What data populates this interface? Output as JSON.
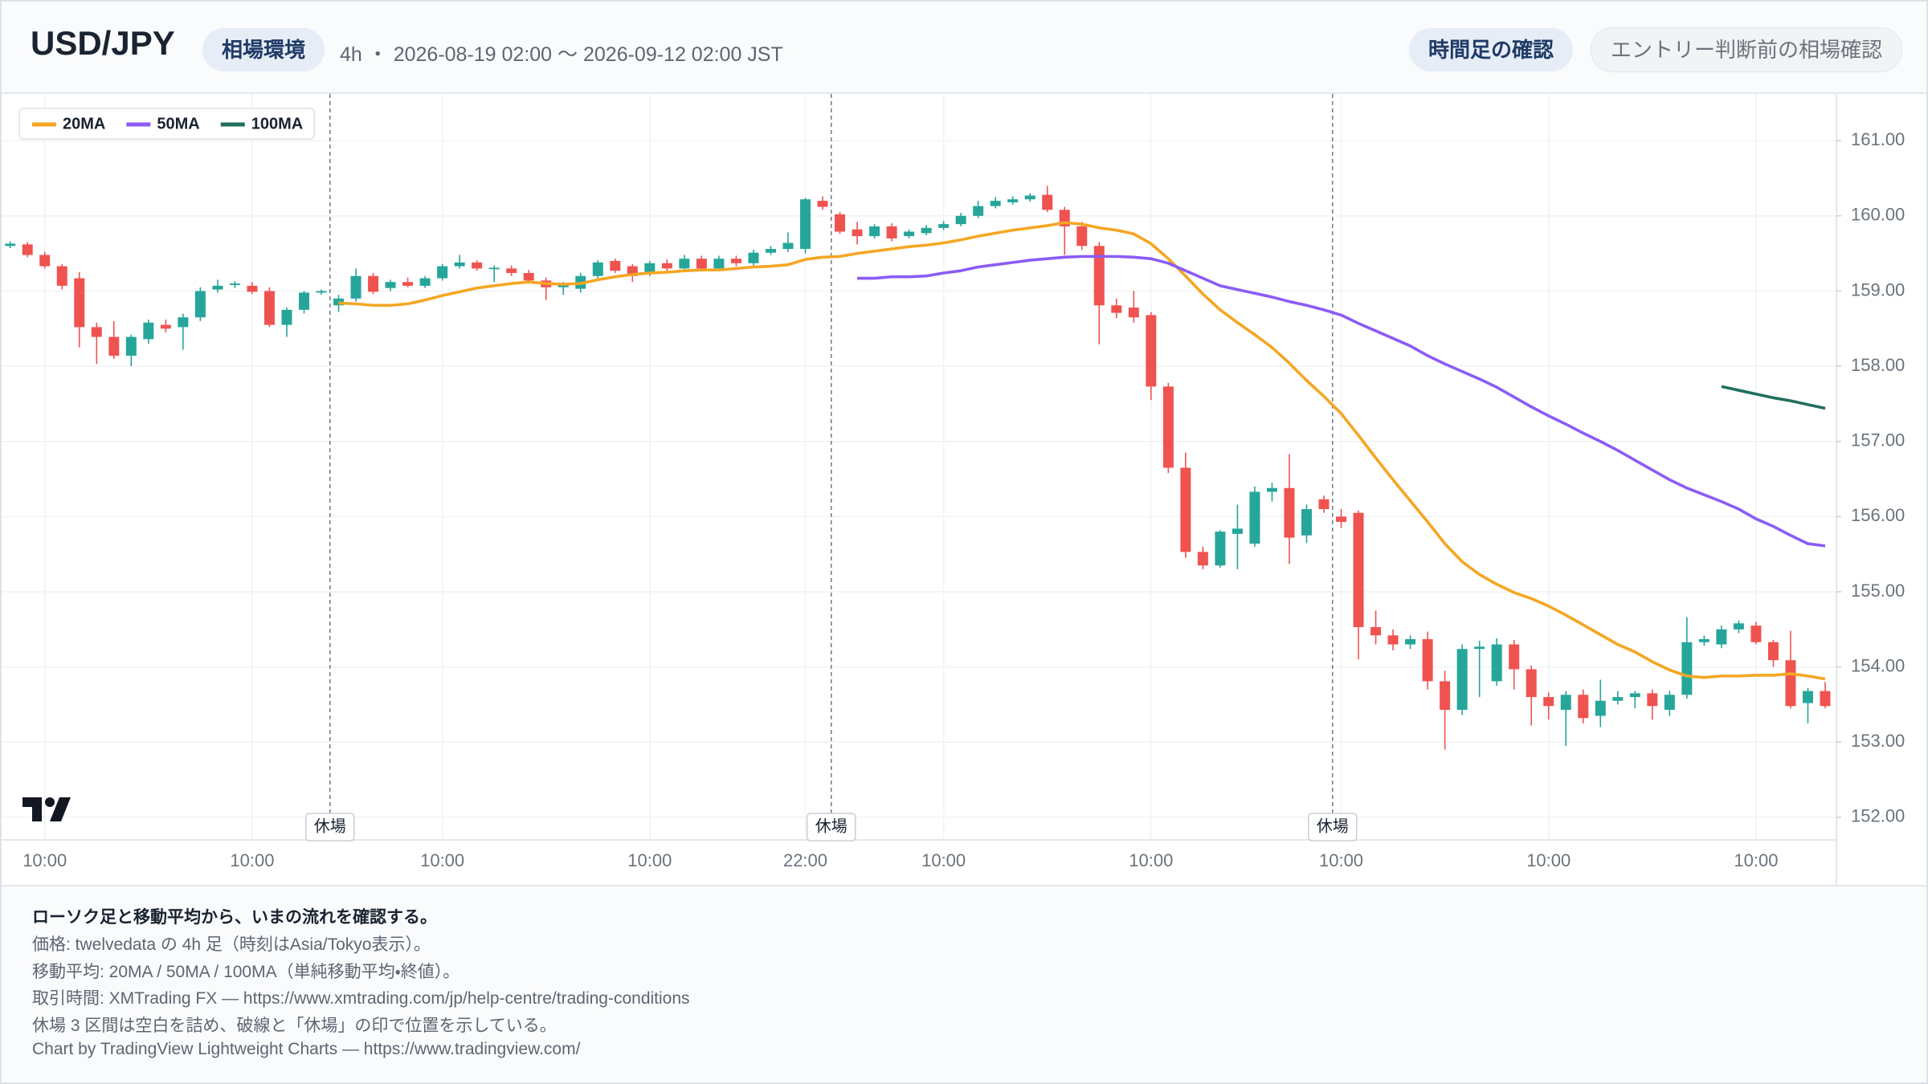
{
  "header": {
    "title": "USD/JPY",
    "badge": "相場環境",
    "subtitle": "4h ・ 2026-08-19 02:00 〜 2026-09-12 02:00 JST",
    "tabs": [
      "時間足の確認",
      "エントリー判断前の相場確認"
    ]
  },
  "chart_data": {
    "type": "candlestick",
    "categories": [
      null,
      null,
      "10:00",
      null,
      null,
      null,
      null,
      null,
      null,
      null,
      null,
      null,
      null,
      null,
      "10:00",
      null,
      null,
      null,
      null,
      null,
      null,
      null,
      null,
      null,
      null,
      "10:00",
      null,
      null,
      null,
      null,
      null,
      null,
      null,
      null,
      null,
      null,
      null,
      "10:00",
      null,
      null,
      null,
      null,
      null,
      null,
      null,
      null,
      "22:00",
      null,
      null,
      null,
      null,
      null,
      null,
      null,
      "10:00",
      null,
      null,
      null,
      null,
      null,
      null,
      null,
      null,
      null,
      null,
      null,
      "10:00",
      null,
      null,
      null,
      null,
      null,
      null,
      null,
      null,
      null,
      null,
      "10:00",
      null,
      null,
      null,
      null,
      null,
      null,
      null,
      null,
      null,
      null,
      null,
      "10:00",
      null,
      null,
      null,
      null,
      null,
      null,
      null,
      null,
      null,
      null,
      null,
      "10:00",
      null,
      null,
      null,
      null
    ],
    "ohlc": [
      [
        159.6,
        159.66,
        159.57,
        159.63
      ],
      [
        159.62,
        159.65,
        159.45,
        159.48
      ],
      [
        159.48,
        159.52,
        159.3,
        159.33
      ],
      [
        159.33,
        159.36,
        159.02,
        159.07
      ],
      [
        159.17,
        159.25,
        158.25,
        158.52
      ],
      [
        158.52,
        158.58,
        158.03,
        158.39
      ],
      [
        158.39,
        158.6,
        158.1,
        158.14
      ],
      [
        158.14,
        158.42,
        158.0,
        158.39
      ],
      [
        158.36,
        158.62,
        158.3,
        158.58
      ],
      [
        158.55,
        158.62,
        158.45,
        158.5
      ],
      [
        158.52,
        158.7,
        158.22,
        158.65
      ],
      [
        158.65,
        159.05,
        158.6,
        159.0
      ],
      [
        159.02,
        159.15,
        158.98,
        159.07
      ],
      [
        159.08,
        159.13,
        159.04,
        159.1
      ],
      [
        159.07,
        159.12,
        158.96,
        158.99
      ],
      [
        159.0,
        159.05,
        158.52,
        158.55
      ],
      [
        158.55,
        158.78,
        158.39,
        158.75
      ],
      [
        158.75,
        159.0,
        158.7,
        158.98
      ],
      [
        158.98,
        159.02,
        158.95,
        159.0
      ],
      [
        158.81,
        158.95,
        158.72,
        158.9
      ],
      [
        158.9,
        159.3,
        158.86,
        159.2
      ],
      [
        159.2,
        159.24,
        158.96,
        158.99
      ],
      [
        159.04,
        159.15,
        159.0,
        159.12
      ],
      [
        159.12,
        159.18,
        159.05,
        159.07
      ],
      [
        159.07,
        159.2,
        159.04,
        159.17
      ],
      [
        159.17,
        159.36,
        159.14,
        159.33
      ],
      [
        159.33,
        159.48,
        159.3,
        159.38
      ],
      [
        159.38,
        159.41,
        159.27,
        159.3
      ],
      [
        159.29,
        159.34,
        159.12,
        159.31
      ],
      [
        159.3,
        159.34,
        159.2,
        159.24
      ],
      [
        159.24,
        159.28,
        159.1,
        159.14
      ],
      [
        159.14,
        159.18,
        158.88,
        159.05
      ],
      [
        159.05,
        159.12,
        158.95,
        159.08
      ],
      [
        159.03,
        159.24,
        158.98,
        159.2
      ],
      [
        159.2,
        159.41,
        159.17,
        159.38
      ],
      [
        159.4,
        159.43,
        159.24,
        159.27
      ],
      [
        159.33,
        159.36,
        159.12,
        159.2
      ],
      [
        159.24,
        159.4,
        159.2,
        159.37
      ],
      [
        159.37,
        159.42,
        159.26,
        159.3
      ],
      [
        159.3,
        159.48,
        159.27,
        159.43
      ],
      [
        159.43,
        159.47,
        159.26,
        159.3
      ],
      [
        159.3,
        159.47,
        159.27,
        159.43
      ],
      [
        159.43,
        159.47,
        159.33,
        159.37
      ],
      [
        159.37,
        159.55,
        159.34,
        159.51
      ],
      [
        159.51,
        159.6,
        159.48,
        159.56
      ],
      [
        159.56,
        159.78,
        159.52,
        159.64
      ],
      [
        159.56,
        160.24,
        159.5,
        160.22
      ],
      [
        160.2,
        160.26,
        160.08,
        160.12
      ],
      [
        160.02,
        160.05,
        159.76,
        159.79
      ],
      [
        159.82,
        159.92,
        159.62,
        159.73
      ],
      [
        159.73,
        159.89,
        159.7,
        159.86
      ],
      [
        159.86,
        159.9,
        159.66,
        159.7
      ],
      [
        159.73,
        159.82,
        159.7,
        159.79
      ],
      [
        159.77,
        159.88,
        159.74,
        159.84
      ],
      [
        159.84,
        159.93,
        159.81,
        159.89
      ],
      [
        159.89,
        160.04,
        159.86,
        160.0
      ],
      [
        160.0,
        160.2,
        159.97,
        160.13
      ],
      [
        160.13,
        160.25,
        160.1,
        160.2
      ],
      [
        160.18,
        160.26,
        160.15,
        160.22
      ],
      [
        160.22,
        160.3,
        160.19,
        160.27
      ],
      [
        160.28,
        160.4,
        160.05,
        160.08
      ],
      [
        160.08,
        160.12,
        159.48,
        159.86
      ],
      [
        159.86,
        159.92,
        159.55,
        159.6
      ],
      [
        159.6,
        159.65,
        158.29,
        158.81
      ],
      [
        158.81,
        158.9,
        158.64,
        158.71
      ],
      [
        158.78,
        159.0,
        158.58,
        158.65
      ],
      [
        158.68,
        158.72,
        157.55,
        157.73
      ],
      [
        157.73,
        157.78,
        156.58,
        156.65
      ],
      [
        156.65,
        156.85,
        155.45,
        155.53
      ],
      [
        155.53,
        155.6,
        155.3,
        155.35
      ],
      [
        155.35,
        155.82,
        155.32,
        155.8
      ],
      [
        155.77,
        156.16,
        155.3,
        155.84
      ],
      [
        155.64,
        156.4,
        155.6,
        156.33
      ],
      [
        156.33,
        156.45,
        156.2,
        156.38
      ],
      [
        156.38,
        156.83,
        155.37,
        155.72
      ],
      [
        155.75,
        156.16,
        155.65,
        156.1
      ],
      [
        156.23,
        156.28,
        156.05,
        156.1
      ],
      [
        156.0,
        156.1,
        155.85,
        155.93
      ],
      [
        156.05,
        156.08,
        154.1,
        154.53
      ],
      [
        154.53,
        154.75,
        154.3,
        154.42
      ],
      [
        154.42,
        154.5,
        154.22,
        154.3
      ],
      [
        154.3,
        154.42,
        154.24,
        154.37
      ],
      [
        154.37,
        154.47,
        153.7,
        153.81
      ],
      [
        153.81,
        153.95,
        152.9,
        153.43
      ],
      [
        153.43,
        154.3,
        153.36,
        154.24
      ],
      [
        154.24,
        154.35,
        153.6,
        154.27
      ],
      [
        153.81,
        154.38,
        153.75,
        154.3
      ],
      [
        154.3,
        154.36,
        153.7,
        153.97
      ],
      [
        153.97,
        154.02,
        153.22,
        153.6
      ],
      [
        153.6,
        153.66,
        153.3,
        153.48
      ],
      [
        153.43,
        153.68,
        152.95,
        153.63
      ],
      [
        153.63,
        153.7,
        153.25,
        153.32
      ],
      [
        153.35,
        153.83,
        153.2,
        153.55
      ],
      [
        153.55,
        153.68,
        153.5,
        153.6
      ],
      [
        153.6,
        153.68,
        153.45,
        153.65
      ],
      [
        153.65,
        153.7,
        153.3,
        153.48
      ],
      [
        153.43,
        153.68,
        153.35,
        153.63
      ],
      [
        153.63,
        154.66,
        153.58,
        154.33
      ],
      [
        154.33,
        154.42,
        154.28,
        154.37
      ],
      [
        154.3,
        154.55,
        154.25,
        154.5
      ],
      [
        154.5,
        154.62,
        154.45,
        154.58
      ],
      [
        154.55,
        154.6,
        154.3,
        154.33
      ],
      [
        154.33,
        154.36,
        154.0,
        154.09
      ],
      [
        154.09,
        154.48,
        153.45,
        153.48
      ],
      [
        153.52,
        153.72,
        153.25,
        153.68
      ],
      [
        153.68,
        153.8,
        153.45,
        153.48
      ]
    ],
    "up_color": "#26a69a",
    "down_color": "#ef5350",
    "series": [
      {
        "name": "20MA",
        "color": "#f5a623",
        "values": [
          null,
          null,
          null,
          null,
          null,
          null,
          null,
          null,
          null,
          null,
          null,
          null,
          null,
          null,
          null,
          null,
          null,
          null,
          null,
          158.84,
          158.83,
          158.81,
          158.81,
          158.83,
          158.88,
          158.94,
          158.99,
          159.04,
          159.07,
          159.1,
          159.12,
          159.1,
          159.09,
          159.1,
          159.15,
          159.19,
          159.22,
          159.24,
          159.25,
          159.27,
          159.28,
          159.28,
          159.3,
          159.32,
          159.33,
          159.35,
          159.42,
          159.45,
          159.46,
          159.5,
          159.53,
          159.56,
          159.59,
          159.61,
          159.64,
          159.68,
          159.73,
          159.77,
          159.81,
          159.84,
          159.87,
          159.91,
          159.89,
          159.84,
          159.81,
          159.76,
          159.63,
          159.43,
          159.2,
          158.96,
          158.75,
          158.58,
          158.42,
          158.25,
          158.04,
          157.81,
          157.6,
          157.37,
          157.08,
          156.78,
          156.49,
          156.21,
          155.93,
          155.64,
          155.4,
          155.23,
          155.1,
          154.99,
          154.91,
          154.81,
          154.69,
          154.56,
          154.43,
          154.3,
          154.2,
          154.07,
          153.96,
          153.88,
          153.86,
          153.88,
          153.88,
          153.89,
          153.89,
          153.91,
          153.88,
          153.84
        ]
      },
      {
        "name": "50MA",
        "color": "#8b5cf6",
        "values": [
          null,
          null,
          null,
          null,
          null,
          null,
          null,
          null,
          null,
          null,
          null,
          null,
          null,
          null,
          null,
          null,
          null,
          null,
          null,
          null,
          null,
          null,
          null,
          null,
          null,
          null,
          null,
          null,
          null,
          null,
          null,
          null,
          null,
          null,
          null,
          null,
          null,
          null,
          null,
          null,
          null,
          null,
          null,
          null,
          null,
          null,
          null,
          null,
          null,
          159.17,
          159.17,
          159.19,
          159.19,
          159.2,
          159.24,
          159.27,
          159.32,
          159.35,
          159.38,
          159.41,
          159.43,
          159.45,
          159.46,
          159.46,
          159.46,
          159.45,
          159.43,
          159.37,
          159.27,
          159.17,
          159.07,
          159.02,
          158.97,
          158.92,
          158.86,
          158.81,
          158.75,
          158.68,
          158.57,
          158.47,
          158.37,
          158.27,
          158.14,
          158.03,
          157.93,
          157.83,
          157.72,
          157.59,
          157.46,
          157.34,
          157.23,
          157.11,
          157.0,
          156.88,
          156.75,
          156.62,
          156.49,
          156.38,
          156.29,
          156.2,
          156.1,
          155.97,
          155.87,
          155.75,
          155.64,
          155.61
        ]
      },
      {
        "name": "100MA",
        "color": "#1f6f5c",
        "values": [
          null,
          null,
          null,
          null,
          null,
          null,
          null,
          null,
          null,
          null,
          null,
          null,
          null,
          null,
          null,
          null,
          null,
          null,
          null,
          null,
          null,
          null,
          null,
          null,
          null,
          null,
          null,
          null,
          null,
          null,
          null,
          null,
          null,
          null,
          null,
          null,
          null,
          null,
          null,
          null,
          null,
          null,
          null,
          null,
          null,
          null,
          null,
          null,
          null,
          null,
          null,
          null,
          null,
          null,
          null,
          null,
          null,
          null,
          null,
          null,
          null,
          null,
          null,
          null,
          null,
          null,
          null,
          null,
          null,
          null,
          null,
          null,
          null,
          null,
          null,
          null,
          null,
          null,
          null,
          null,
          null,
          null,
          null,
          null,
          null,
          null,
          null,
          null,
          null,
          null,
          null,
          null,
          null,
          null,
          null,
          null,
          null,
          null,
          null,
          157.73,
          157.68,
          157.63,
          157.58,
          157.54,
          157.49,
          157.44
        ]
      }
    ],
    "breaks": [
      {
        "after": 18,
        "label": "休場"
      },
      {
        "after": 47,
        "label": "休場"
      },
      {
        "after": 76,
        "label": "休場"
      }
    ],
    "ylim": [
      151.7,
      161.6
    ],
    "yticks": [
      {
        "value": 152,
        "label": "152.00"
      },
      {
        "value": 153,
        "label": "153.00"
      },
      {
        "value": 154,
        "label": "154.00"
      },
      {
        "value": 155,
        "label": "155.00"
      },
      {
        "value": 156,
        "label": "156.00"
      },
      {
        "value": 157,
        "label": "157.00"
      },
      {
        "value": 158,
        "label": "158.00"
      },
      {
        "value": 159,
        "label": "159.00"
      },
      {
        "value": 160,
        "label": "160.00"
      },
      {
        "value": 161,
        "label": "161.00"
      }
    ],
    "grid": true,
    "legend": "top-left"
  },
  "footer": {
    "heading": "ローソク足と移動平均から、いまの流れを確認する。",
    "lines": [
      "価格: twelvedata の 4h 足（時刻はAsia/Tokyo表示）。",
      "移動平均: 20MA / 50MA / 100MA（単純移動平均・終値）。",
      "取引時間: XMTrading FX — https://www.xmtrading.com/jp/help-centre/trading-conditions",
      "休場 3 区間は空白を詰め、破線と「休場」の印で位置を示している。",
      "Chart by TradingView Lightweight Charts — https://www.tradingview.com/"
    ]
  }
}
